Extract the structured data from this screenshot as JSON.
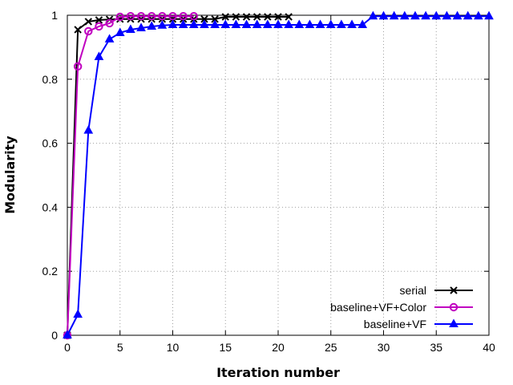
{
  "chart_data": {
    "type": "line",
    "title": "",
    "xlabel": "Iteration number",
    "ylabel": "Modularity",
    "xlim": [
      0,
      40
    ],
    "ylim": [
      0,
      1
    ],
    "x_ticks": [
      0,
      5,
      10,
      15,
      20,
      25,
      30,
      35,
      40
    ],
    "y_ticks": [
      0,
      0.2,
      0.4,
      0.6,
      0.8,
      1
    ],
    "x_tick_labels": [
      "0",
      "5",
      "10",
      "15",
      "20",
      "25",
      "30",
      "35",
      "40"
    ],
    "y_tick_labels": [
      "0",
      "0.2",
      "0.4",
      "0.6",
      "0.8",
      "1"
    ],
    "grid": true,
    "legend_position": "bottom-right",
    "series": [
      {
        "name": "serial",
        "color": "#000000",
        "marker": "x",
        "x": [
          0,
          1,
          2,
          3,
          4,
          5,
          6,
          7,
          8,
          9,
          10,
          11,
          12,
          13,
          14,
          15,
          16,
          17,
          18,
          19,
          20,
          21
        ],
        "y": [
          0,
          0.955,
          0.98,
          0.985,
          0.987,
          0.988,
          0.988,
          0.988,
          0.988,
          0.988,
          0.988,
          0.988,
          0.988,
          0.988,
          0.988,
          0.995,
          0.995,
          0.995,
          0.995,
          0.995,
          0.995,
          0.995
        ]
      },
      {
        "name": "baseline+VF+Color",
        "color": "#c000c0",
        "marker": "circle",
        "x": [
          0,
          1,
          2,
          3,
          4,
          5,
          6,
          7,
          8,
          9,
          10,
          11,
          12
        ],
        "y": [
          0,
          0.84,
          0.95,
          0.965,
          0.975,
          0.995,
          0.997,
          0.997,
          0.997,
          0.997,
          0.997,
          0.997,
          0.997
        ]
      },
      {
        "name": "baseline+VF",
        "color": "#0000ff",
        "marker": "triangle",
        "x": [
          0,
          1,
          2,
          3,
          4,
          5,
          6,
          7,
          8,
          9,
          10,
          11,
          12,
          13,
          14,
          15,
          16,
          17,
          18,
          19,
          20,
          21,
          22,
          23,
          24,
          25,
          26,
          27,
          28,
          29,
          30,
          31,
          32,
          33,
          34,
          35,
          36,
          37,
          38,
          39,
          40
        ],
        "y": [
          0,
          0.065,
          0.64,
          0.87,
          0.925,
          0.945,
          0.955,
          0.96,
          0.965,
          0.968,
          0.97,
          0.97,
          0.97,
          0.97,
          0.97,
          0.97,
          0.97,
          0.97,
          0.97,
          0.97,
          0.97,
          0.97,
          0.97,
          0.97,
          0.97,
          0.97,
          0.97,
          0.97,
          0.97,
          0.997,
          0.997,
          0.997,
          0.997,
          0.997,
          0.997,
          0.997,
          0.997,
          0.997,
          0.997,
          0.997,
          0.997
        ]
      }
    ]
  }
}
